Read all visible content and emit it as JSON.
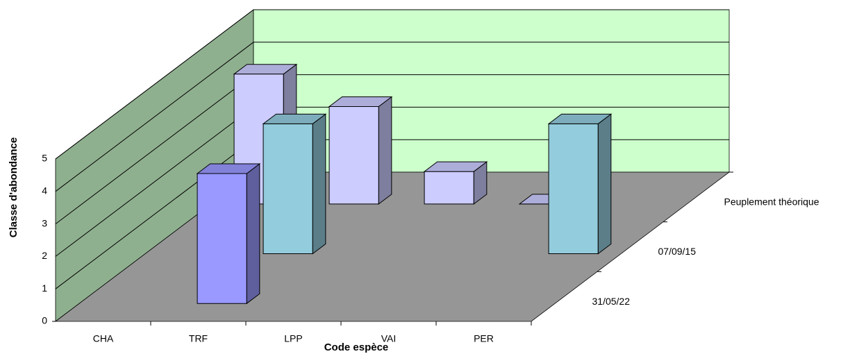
{
  "chart_data": {
    "type": "bar3d",
    "x_label": "Code espèce",
    "y_label": "Classe d'abondance",
    "categories": [
      "CHA",
      "TRF",
      "LPP",
      "VAI",
      "PER"
    ],
    "series": [
      {
        "name": "31/05/22",
        "color": "#9999ff",
        "values": [
          null,
          4,
          null,
          null,
          null
        ]
      },
      {
        "name": "07/09/15",
        "color": "#93ccdd",
        "values": [
          null,
          4,
          null,
          null,
          4
        ]
      },
      {
        "name": "Peuplement théorique",
        "color": "#ccccff",
        "values": [
          4,
          3,
          1,
          0,
          null
        ]
      }
    ],
    "ylim": [
      0,
      5
    ],
    "yticks": [
      0,
      1,
      2,
      3,
      4,
      5
    ],
    "grid": true
  }
}
